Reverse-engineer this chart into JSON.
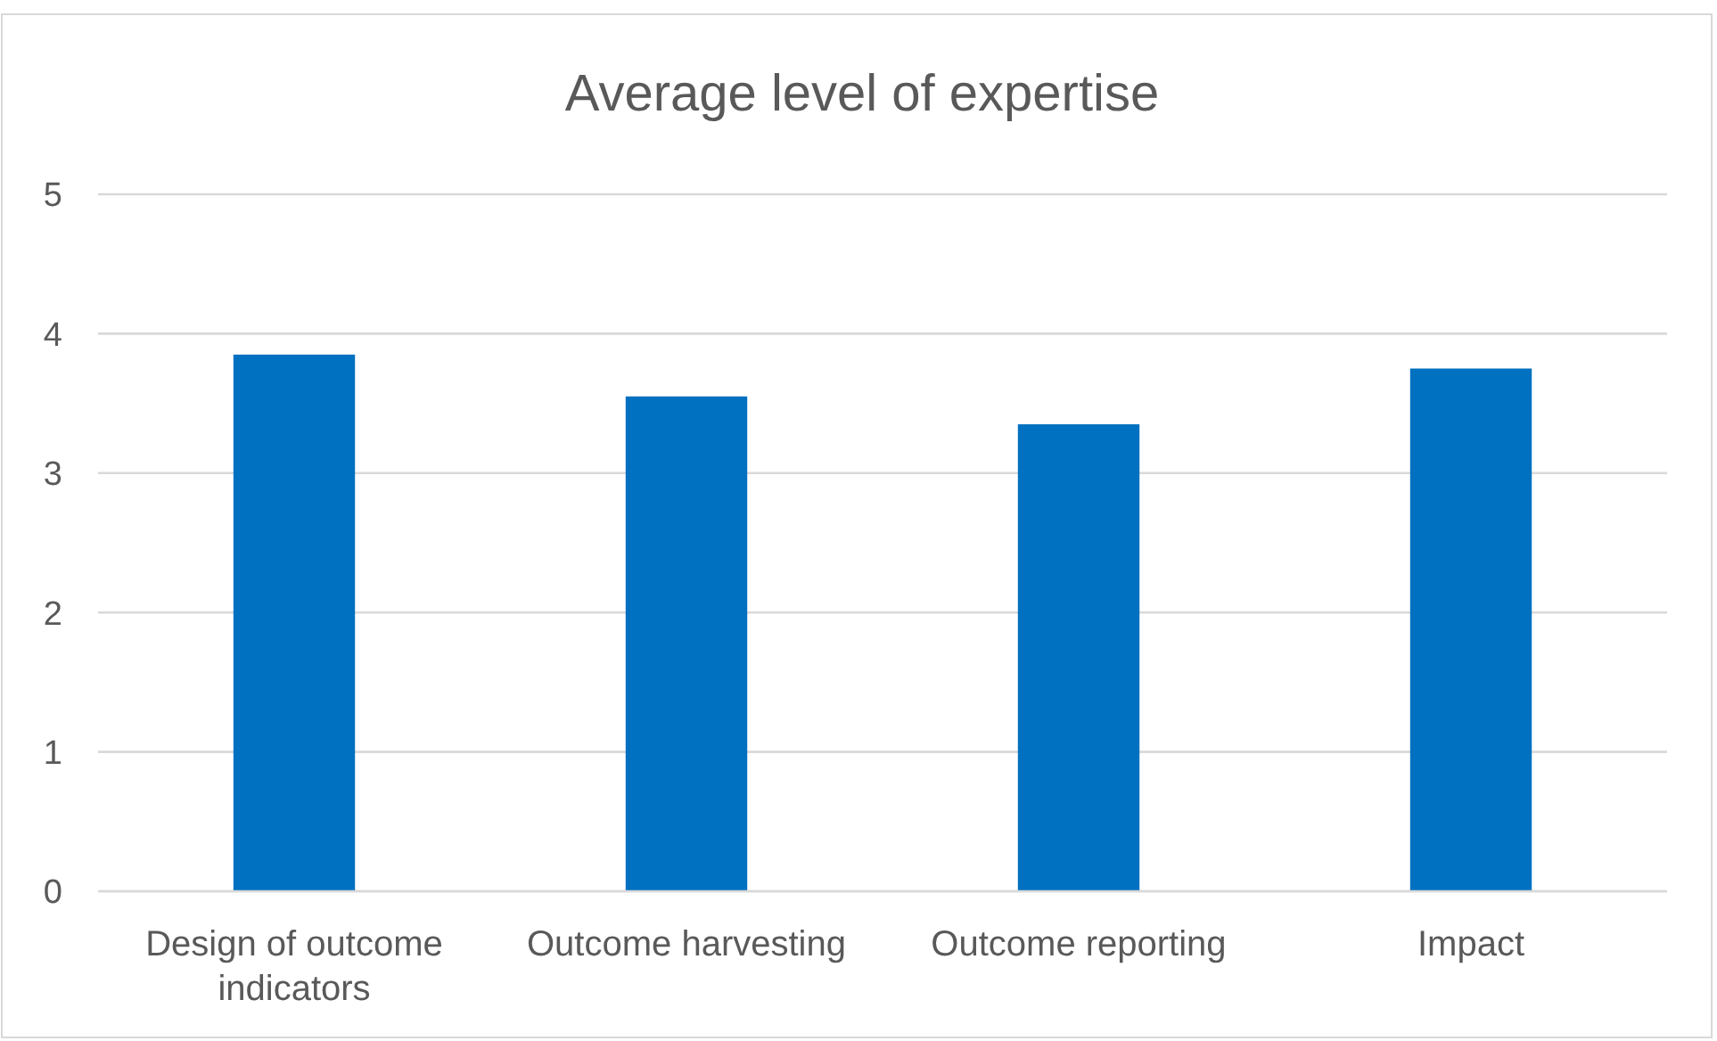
{
  "chart_data": {
    "type": "bar",
    "title": "Average level of expertise",
    "categories": [
      "Design of outcome indicators",
      "Outcome harvesting",
      "Outcome reporting",
      "Impact"
    ],
    "values": [
      3.85,
      3.55,
      3.35,
      3.75
    ],
    "color": "#0070c0",
    "ylim": [
      0,
      5
    ],
    "yticks": [
      0,
      1,
      2,
      3,
      4,
      5
    ],
    "grid": "y"
  }
}
